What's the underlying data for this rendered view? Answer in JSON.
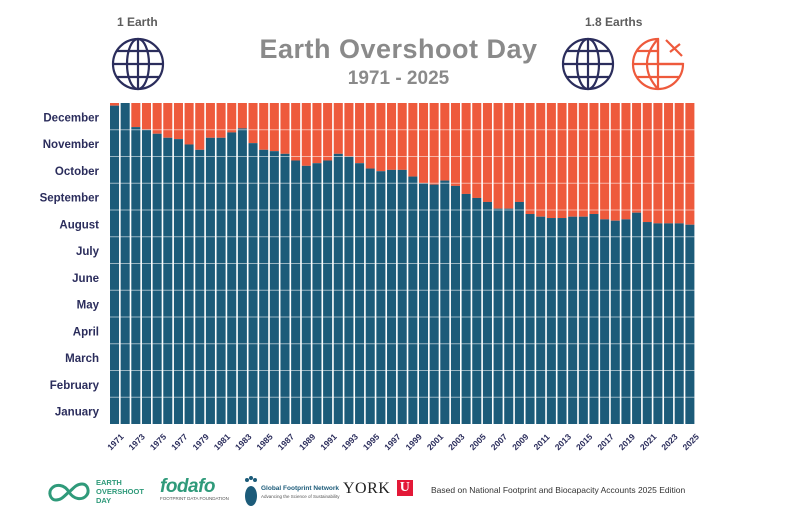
{
  "header": {
    "title": "Earth Overshoot Day",
    "subtitle": "1971 - 2025",
    "left_globe_label": "1 Earth",
    "right_globe_label": "1.8 Earths",
    "globe_icon": "globe-icon",
    "partial_globe_icon": "partial-globe-icon",
    "globe_color": "#2b2d5c",
    "partial_globe_color": "#ee5a3c"
  },
  "footer": {
    "logo1_line1": "EARTH",
    "logo1_line2": "OVERSHOOT",
    "logo1_line3": "DAY",
    "logo2_name": "fodafo",
    "logo2_tag": "FOOTPRINT DATA FOUNDATION",
    "logo3_name": "Global Footprint Network",
    "logo3_tag": "Advancing the Science of Sustainability",
    "logo4_name": "YORK",
    "logo4_mark": "U",
    "credit": "Based on National Footprint and Biocapacity Accounts 2025 Edition"
  },
  "chart_data": {
    "type": "bar",
    "stacked": true,
    "title": "Earth Overshoot Day",
    "subtitle": "1971 - 2025",
    "y_unit": "month of year (1 = Jan 1, 13 = Dec 31)",
    "ylim": [
      1,
      13
    ],
    "y_tick_labels": [
      "January",
      "February",
      "March",
      "April",
      "May",
      "June",
      "July",
      "August",
      "September",
      "October",
      "November",
      "December"
    ],
    "x_tick_labels": [
      "1971",
      "1973",
      "1975",
      "1977",
      "1979",
      "1981",
      "1983",
      "1985",
      "1987",
      "1989",
      "1991",
      "1993",
      "1995",
      "1997",
      "1999",
      "2001",
      "2003",
      "2005",
      "2007",
      "2009",
      "2011",
      "2013",
      "2015",
      "2017",
      "2019",
      "2021",
      "2023",
      "2025"
    ],
    "colors": {
      "before_overshoot": "#1c5b79",
      "after_overshoot": "#ee5a3c"
    },
    "years": [
      1971,
      1972,
      1973,
      1974,
      1975,
      1976,
      1977,
      1978,
      1979,
      1980,
      1981,
      1982,
      1983,
      1984,
      1985,
      1986,
      1987,
      1988,
      1989,
      1990,
      1991,
      1992,
      1993,
      1994,
      1995,
      1996,
      1997,
      1998,
      1999,
      2000,
      2001,
      2002,
      2003,
      2004,
      2005,
      2006,
      2007,
      2008,
      2009,
      2010,
      2011,
      2012,
      2013,
      2014,
      2015,
      2016,
      2017,
      2018,
      2019,
      2020,
      2021,
      2022,
      2023,
      2024,
      2025
    ],
    "values": [
      12.9,
      13.0,
      12.1,
      12.0,
      11.85,
      11.7,
      11.65,
      11.45,
      11.25,
      11.7,
      11.7,
      11.9,
      12.05,
      11.5,
      11.25,
      11.2,
      11.1,
      10.85,
      10.65,
      10.75,
      10.85,
      11.1,
      11.0,
      10.75,
      10.55,
      10.45,
      10.5,
      10.5,
      10.25,
      10.0,
      9.95,
      10.1,
      9.9,
      9.6,
      9.45,
      9.3,
      9.05,
      9.05,
      9.3,
      8.85,
      8.75,
      8.7,
      8.7,
      8.75,
      8.75,
      8.85,
      8.65,
      8.6,
      8.65,
      8.9,
      8.55,
      8.5,
      8.5,
      8.5,
      8.45
    ]
  }
}
